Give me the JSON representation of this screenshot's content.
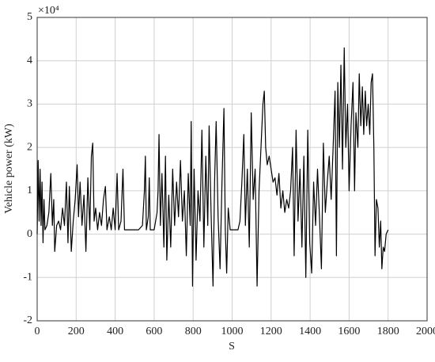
{
  "chart_data": {
    "type": "line",
    "x_label": "S",
    "y_label": "Vehicle power (kW)",
    "y_multiplier": "×10⁴",
    "xlim": [
      0,
      2000
    ],
    "xticks": [
      0,
      200,
      400,
      600,
      800,
      1000,
      1200,
      1400,
      1600,
      1800,
      2000
    ],
    "ylim": [
      -2,
      5
    ],
    "yticks": [
      -2,
      -1,
      0,
      1,
      2,
      3,
      4,
      5
    ],
    "grid": true,
    "x": [
      0,
      5,
      10,
      15,
      20,
      25,
      30,
      35,
      40,
      50,
      60,
      70,
      78,
      85,
      90,
      100,
      110,
      120,
      130,
      140,
      150,
      158,
      165,
      175,
      185,
      195,
      205,
      212,
      220,
      230,
      240,
      250,
      260,
      270,
      278,
      285,
      292,
      300,
      310,
      320,
      330,
      340,
      350,
      358,
      370,
      380,
      390,
      400,
      410,
      418,
      430,
      440,
      448,
      460,
      480,
      500,
      520,
      540,
      550,
      555,
      560,
      570,
      575,
      580,
      600,
      615,
      620,
      625,
      632,
      640,
      650,
      658,
      665,
      675,
      685,
      695,
      705,
      715,
      725,
      735,
      745,
      755,
      765,
      775,
      785,
      790,
      797,
      805,
      815,
      825,
      835,
      845,
      855,
      865,
      875,
      882,
      892,
      902,
      910,
      918,
      928,
      938,
      948,
      958,
      965,
      972,
      980,
      990,
      1000,
      1030,
      1040,
      1050,
      1060,
      1068,
      1078,
      1088,
      1098,
      1108,
      1118,
      1128,
      1138,
      1148,
      1158,
      1165,
      1172,
      1180,
      1190,
      1200,
      1210,
      1220,
      1230,
      1240,
      1250,
      1260,
      1270,
      1280,
      1290,
      1300,
      1310,
      1318,
      1328,
      1338,
      1348,
      1358,
      1368,
      1378,
      1388,
      1398,
      1408,
      1418,
      1428,
      1438,
      1448,
      1458,
      1468,
      1478,
      1488,
      1498,
      1508,
      1518,
      1528,
      1535,
      1542,
      1550,
      1558,
      1566,
      1575,
      1583,
      1592,
      1600,
      1610,
      1620,
      1628,
      1635,
      1645,
      1652,
      1660,
      1668,
      1675,
      1683,
      1690,
      1698,
      1706,
      1713,
      1720,
      1727,
      1733,
      1740,
      1748,
      1755,
      1762,
      1768,
      1775,
      1782,
      1790,
      1800
    ],
    "series": [
      {
        "color": "#000000",
        "values": [
          0,
          1.7,
          0.3,
          1.5,
          0.2,
          1.2,
          -0.2,
          0.8,
          0.1,
          0.2,
          0.5,
          1.4,
          0.2,
          0.8,
          -0.4,
          0.2,
          0.3,
          0.1,
          0.6,
          0.2,
          1.2,
          -0.2,
          1.1,
          -0.4,
          0.3,
          0.8,
          1.6,
          0.4,
          1.2,
          0.2,
          0.9,
          -0.4,
          1.3,
          0.1,
          1.8,
          2.1,
          0.3,
          0.6,
          0.1,
          0.5,
          0.2,
          0.8,
          1.1,
          0.1,
          0.4,
          0.1,
          0.6,
          0.1,
          1.4,
          0.1,
          0.3,
          1.5,
          0.1,
          0.1,
          0.1,
          0.1,
          0.1,
          0.2,
          1.0,
          1.8,
          0.1,
          0.4,
          1.3,
          0.1,
          0.1,
          0.5,
          1.0,
          2.3,
          0.2,
          1.4,
          -0.3,
          1.8,
          -0.6,
          0.9,
          -0.3,
          1.5,
          0.2,
          1.2,
          0.4,
          1.7,
          0.3,
          1.0,
          -0.5,
          1.4,
          0.2,
          2.6,
          -1.2,
          1.5,
          -0.6,
          1.0,
          0.3,
          2.4,
          -0.3,
          1.8,
          0.2,
          2.5,
          0.5,
          -1.2,
          1.2,
          2.6,
          0.4,
          -0.8,
          1.2,
          2.9,
          0.1,
          -0.9,
          0.6,
          0.1,
          0.1,
          0.1,
          0.3,
          1.2,
          2.3,
          0.2,
          1.5,
          -0.3,
          2.8,
          0.8,
          1.5,
          -1.2,
          1.0,
          2.0,
          3.0,
          3.3,
          2.0,
          1.6,
          1.8,
          1.5,
          1.2,
          1.3,
          0.9,
          1.4,
          0.6,
          1.0,
          0.5,
          0.8,
          0.6,
          1.0,
          2.0,
          -0.5,
          2.4,
          0.3,
          1.5,
          -0.3,
          1.8,
          -1.0,
          2.4,
          -0.2,
          -0.9,
          1.2,
          0.2,
          1.5,
          0.4,
          -0.8,
          2.1,
          0.5,
          1.2,
          1.8,
          0.8,
          2.0,
          3.3,
          -0.5,
          3.5,
          2.0,
          3.9,
          1.5,
          4.3,
          2.0,
          3.0,
          1.0,
          2.5,
          3.5,
          1.0,
          2.8,
          2.0,
          3.7,
          2.5,
          3.4,
          2.3,
          3.3,
          2.5,
          3.0,
          2.3,
          3.5,
          3.7,
          2.0,
          -0.5,
          0.8,
          0.6,
          -0.3,
          0.3,
          -0.8,
          -0.3,
          -0.4,
          0.0,
          0.1
        ]
      }
    ]
  }
}
